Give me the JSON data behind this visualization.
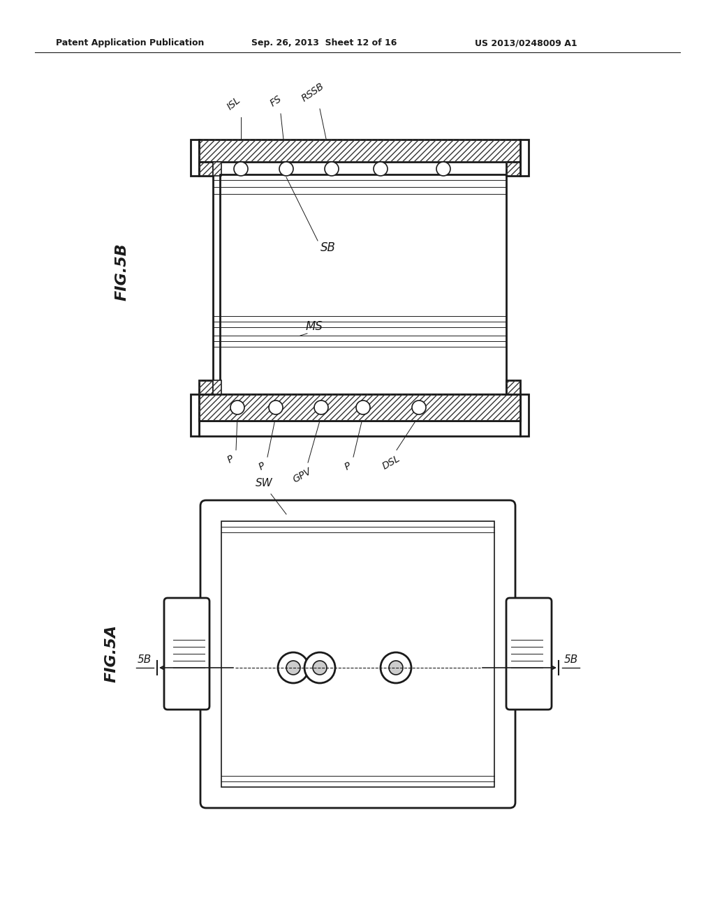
{
  "bg_color": "#ffffff",
  "line_color": "#1a1a1a",
  "hatch_color": "#333333",
  "header_text": "Patent Application Publication",
  "header_date": "Sep. 26, 2013  Sheet 12 of 16",
  "header_patent": "US 2013/0248009 A1",
  "fig5b_label": "FIG.5B",
  "fig5a_label": "FIG.5A"
}
